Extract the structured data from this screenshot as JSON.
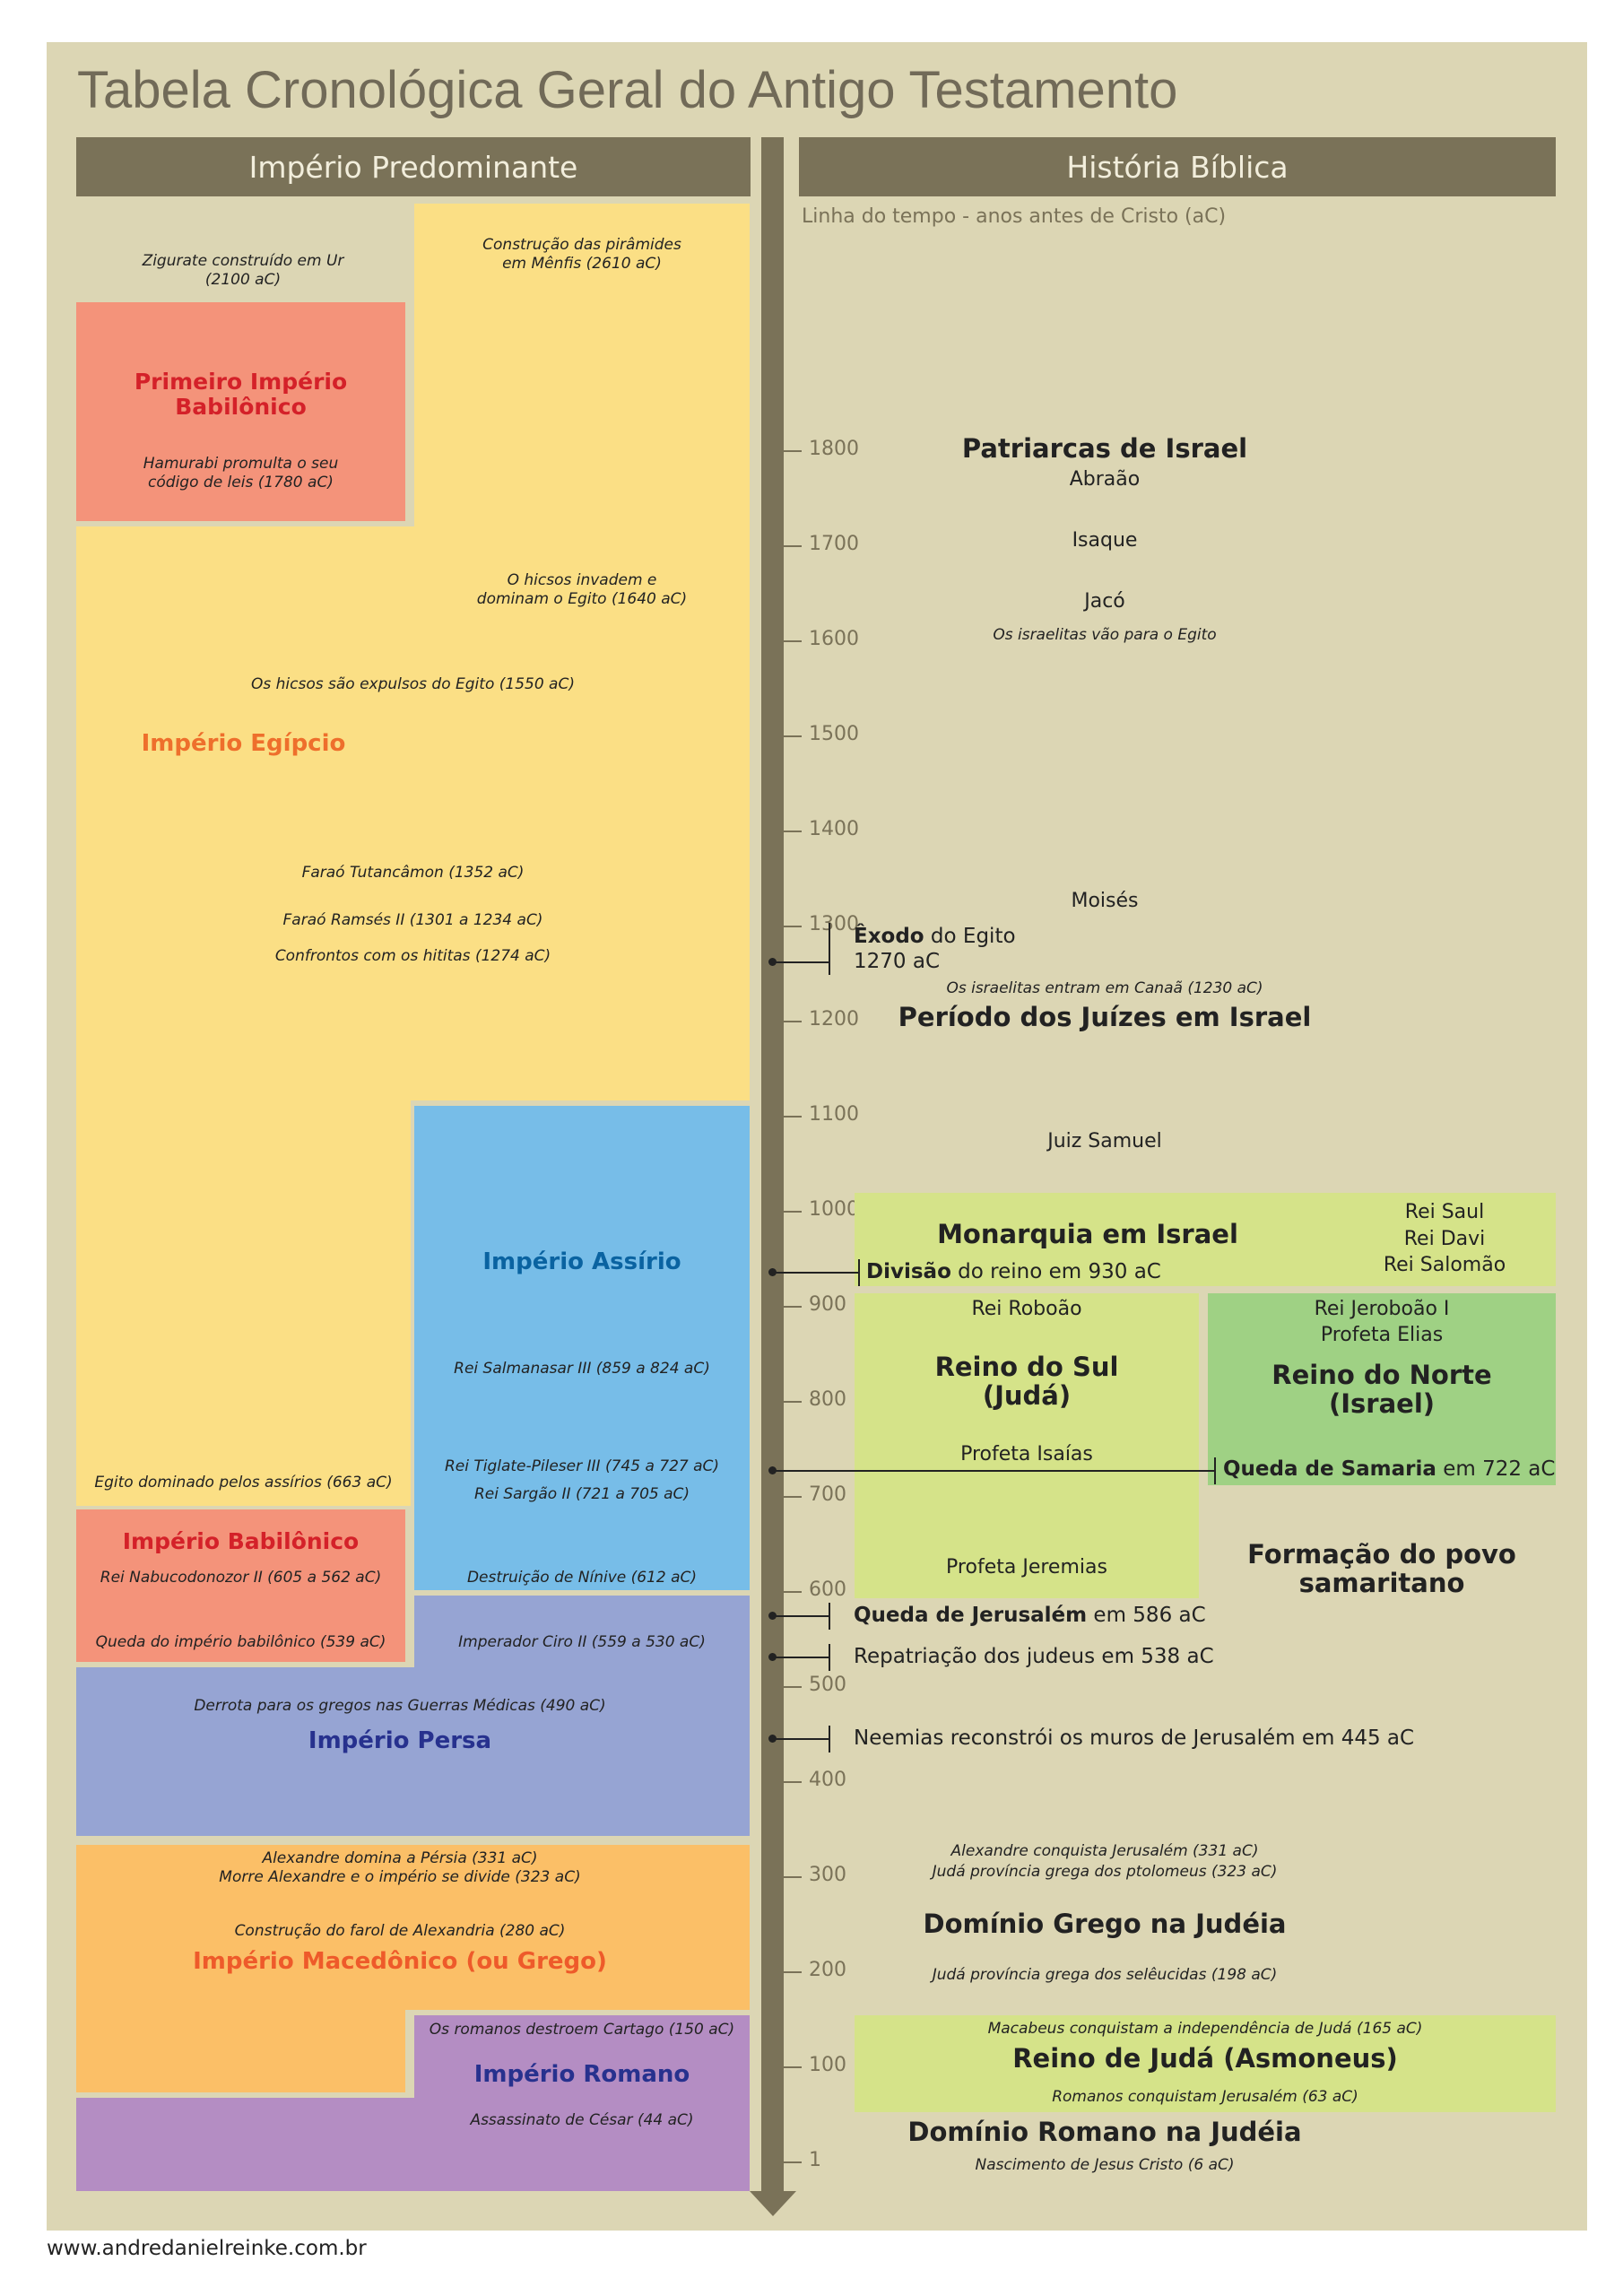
{
  "title": "Tabela Cronológica Geral do Antigo Testamento",
  "headers": {
    "left": "Império Predominante",
    "right": "História Bíblica"
  },
  "subtitle": "Linha do tempo - anos antes de Cristo (aC)",
  "timeline": {
    "ticks": [
      "1800",
      "1700",
      "1600",
      "1500",
      "1400",
      "1300",
      "1200",
      "1100",
      "1000",
      "900",
      "800",
      "700",
      "600",
      "500",
      "400",
      "300",
      "200",
      "100",
      "1"
    ]
  },
  "empires": {
    "ur_note": "Zigurate construído em Ur\n(2100 aC)",
    "piramides_note": "Construção das pirâmides\nem Mênfis (2610 aC)",
    "babilonico1": {
      "name": "Primeiro Império\nBabilônico",
      "note": "Hamurabi promulta o seu\ncódigo de leis (1780 aC)"
    },
    "egipcio": {
      "name": "Império Egípcio",
      "notes": [
        "O hicsos invadem e\ndominam o Egito (1640 aC)",
        "Os hicsos são expulsos do Egito (1550 aC)",
        "Faraó Tutancâmon (1352 aC)",
        "Faraó Ramsés II (1301 a 1234 aC)",
        "Confrontos com os hititas (1274 aC)",
        "Egito dominado pelos assírios (663 aC)"
      ]
    },
    "assirio": {
      "name": "Império Assírio",
      "notes": [
        "Rei Salmanasar III (859 a 824 aC)",
        "Rei Tiglate-Pileser III (745 a 727 aC)",
        "Rei Sargão II (721 a 705 aC)",
        "Destruição de Nínive (612 aC)"
      ]
    },
    "babilonico2": {
      "name": "Império Babilônico",
      "notes": [
        "Rei Nabucodonozor II (605 a 562 aC)",
        "Queda do império babilônico (539 aC)"
      ]
    },
    "persa": {
      "name": "Império Persa",
      "notes": [
        "Imperador Ciro II (559 a 530 aC)",
        "Derrota para os gregos nas Guerras Médicas (490 aC)"
      ]
    },
    "macedonico": {
      "name": "Império Macedônico (ou Grego)",
      "notes": [
        "Alexandre domina a Pérsia (331 aC)\nMorre Alexandre e o império se divide (323 aC)",
        "Construção do farol de Alexandria (280 aC)"
      ]
    },
    "romano": {
      "name": "Império Romano",
      "notes": [
        "Os romanos destroem Cartago (150 aC)",
        "Assassinato de César (44 aC)"
      ]
    }
  },
  "history": {
    "patriarcas": "Patriarcas de Israel",
    "abraao": "Abraão",
    "isaque": "Isaque",
    "jaco": "Jacó",
    "egito_note": "Os israelitas vão para o Egito",
    "moises": "Moisés",
    "exodo": {
      "bold": "Êxodo",
      "rest": " do Egito",
      "year": "1270 aC"
    },
    "canaa_note": "Os israelitas entram em Canaã (1230 aC)",
    "juizes": "Período dos Juízes em Israel",
    "samuel": "Juiz Samuel",
    "monarquia": "Monarquia em Israel",
    "reis": "Rei Saul\nRei Davi\nRei Salomão",
    "divisao": {
      "bold": "Divisão",
      "rest": " do reino em 930 aC"
    },
    "roboao": "Rei Roboão",
    "sul": "Reino do Sul\n(Judá)",
    "isaias": "Profeta Isaías",
    "jeremias": "Profeta Jeremias",
    "jeroboao": "Rei Jeroboão I\nProfeta Elias",
    "norte": "Reino do Norte\n(Israel)",
    "samaria": {
      "bold": "Queda de Samaria",
      "rest": " em 722 aC"
    },
    "samaritano": "Formação do povo\nsamaritano",
    "jerusalem": {
      "bold": "Queda de Jerusalém",
      "rest": " em 586 aC"
    },
    "repatriacao": "Repatriação dos judeus em 538 aC",
    "neemias": "Neemias reconstrói os muros de Jerusalém em 445 aC",
    "alexandre_note": "Alexandre conquista Jerusalém (331 aC)\nJudá província grega dos ptolomeus (323 aC)",
    "grego": "Domínio Grego na Judéia",
    "seleucidas_note": "Judá província grega dos selêucidas (198 aC)",
    "macabeus_note": "Macabeus conquistam a independência de Judá (165 aC)",
    "asmoneus": "Reino de Judá (Asmoneus)",
    "romanos_note": "Romanos conquistam Jerusalém (63 aC)",
    "romano": "Domínio Romano na Judéia",
    "jesus_note": "Nascimento de Jesus Cristo (6 aC)"
  },
  "colors": {
    "egito": "#fbdf85",
    "babilonia": "#f4937a",
    "assiria": "#77bde8",
    "persia": "#96a4d3",
    "grecia": "#fbbf67",
    "roma": "#b48dc3",
    "lime": "#d5e389",
    "green": "#9fd184",
    "bar": "#7a7258",
    "background": "#dcd6b4",
    "name_red": "#d42129",
    "name_orange": "#ee6f2c",
    "name_blue": "#0a63a1",
    "name_navy": "#27318e"
  },
  "footer": "www.andredanielreinke.com.br"
}
